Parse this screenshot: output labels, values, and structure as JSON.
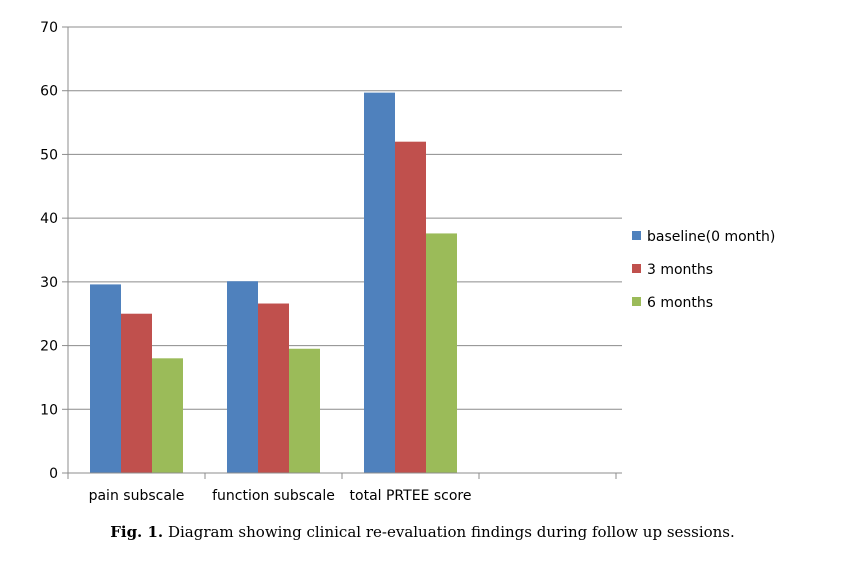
{
  "chart_data": {
    "type": "bar",
    "categories": [
      "pain subscale",
      "function subscale",
      "total PRTEE score"
    ],
    "series": [
      {
        "name": "baseline(0 month)",
        "values": [
          29.6,
          30.1,
          59.7
        ],
        "color": "#4F81BD"
      },
      {
        "name": "3 months",
        "values": [
          25.0,
          26.6,
          52.0
        ],
        "color": "#C0504D"
      },
      {
        "name": "6 months",
        "values": [
          18.0,
          19.5,
          37.6
        ],
        "color": "#9BBB59"
      }
    ],
    "ylim": [
      0,
      70
    ],
    "yticks": [
      0,
      10,
      20,
      30,
      40,
      50,
      60,
      70
    ],
    "grid": true,
    "legend_position": "right"
  },
  "caption": {
    "label": "Fig. 1.",
    "text": "Diagram showing clinical re-evaluation findings during follow up sessions."
  }
}
